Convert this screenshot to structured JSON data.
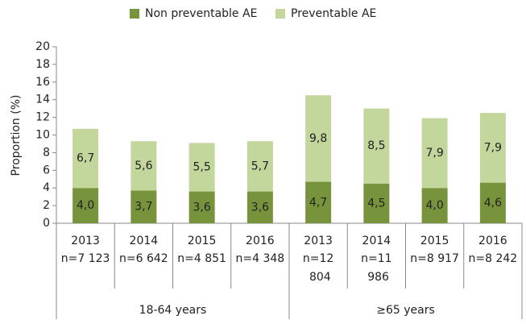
{
  "chart_data": {
    "type": "stacked_bar",
    "ylabel": "Proportion (%)",
    "groups": [
      {
        "label": "18-64 years",
        "categories": [
          "2013",
          "2014",
          "2015",
          "2016"
        ],
        "n_labels": [
          "n=7 123",
          "n=6 642",
          "n=4 851",
          "n=4 348"
        ]
      },
      {
        "label": "≥65 years",
        "categories": [
          "2013",
          "2014",
          "2015",
          "2016"
        ],
        "n_labels": [
          "n=12 804",
          "n=11 986",
          "n=8 917",
          "n=8 242"
        ]
      }
    ],
    "series": [
      {
        "name": "Non preventable AE",
        "color": "#77933c",
        "values": [
          4.0,
          3.7,
          3.6,
          3.6,
          4.7,
          4.5,
          4.0,
          4.6
        ],
        "value_labels": [
          "4,0",
          "3,7",
          "3,6",
          "3,6",
          "4,7",
          "4,5",
          "4,0",
          "4,6"
        ]
      },
      {
        "name": "Preventable AE",
        "color": "#c3d69b",
        "values": [
          6.7,
          5.6,
          5.5,
          5.7,
          9.8,
          8.5,
          7.9,
          7.9
        ],
        "value_labels": [
          "6,7",
          "5,6",
          "5,5",
          "5,7",
          "9,8",
          "8,5",
          "7,9",
          "7,9"
        ]
      }
    ],
    "ylim": [
      0,
      20
    ],
    "yticks": [
      0,
      2,
      4,
      6,
      8,
      10,
      12,
      14,
      16,
      18,
      20
    ],
    "legend": "top"
  }
}
